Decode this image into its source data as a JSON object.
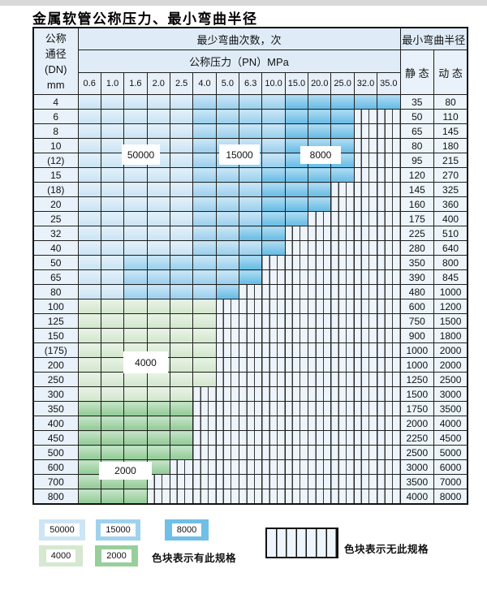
{
  "title": "金属软管公称压力、最小弯曲半径",
  "table": {
    "dn_header_lines": [
      "公称",
      "通径",
      "(DN)",
      "mm"
    ],
    "bend_times_header": "最少弯曲次数，次",
    "pressure_header": "公称压力（PN）MPa",
    "pressure_values": [
      "0.6",
      "1.0",
      "1.6",
      "2.0",
      "2.5",
      "4.0",
      "5.0",
      "6.3",
      "10.0",
      "15.0",
      "20.0",
      "25.0",
      "32.0",
      "35.0"
    ],
    "radius_header": "最小弯曲半径",
    "static_header": "静 态",
    "dynamic_header": "动 态",
    "category_map": {
      "A": "50000",
      "B": "15000",
      "C": "8000",
      "D": "4000",
      "E": "2000",
      "X": "no-spec"
    },
    "rows": [
      {
        "dn": "4",
        "cats": "AAAAABBBBCCCCC",
        "static": "35",
        "dynamic": "80"
      },
      {
        "dn": "6",
        "cats": "AAAAABBBBCCCXX",
        "static": "50",
        "dynamic": "110"
      },
      {
        "dn": "8",
        "cats": "AAAAABBBBCCCXX",
        "static": "65",
        "dynamic": "145"
      },
      {
        "dn": "10",
        "cats": "AAAAABBBBCCCXX",
        "static": "80",
        "dynamic": "180"
      },
      {
        "dn": "(12)",
        "cats": "AAAAABBBBCCCXX",
        "static": "95",
        "dynamic": "215"
      },
      {
        "dn": "15",
        "cats": "AAAAABBBCCCCXX",
        "static": "120",
        "dynamic": "270"
      },
      {
        "dn": "(18)",
        "cats": "AAAAABBBCCCXXX",
        "static": "145",
        "dynamic": "325"
      },
      {
        "dn": "20",
        "cats": "AAAAABBBCCCXXX",
        "static": "160",
        "dynamic": "360"
      },
      {
        "dn": "25",
        "cats": "AAAAABBBCCXXXX",
        "static": "175",
        "dynamic": "400"
      },
      {
        "dn": "32",
        "cats": "AAAAABBCCXXXXX",
        "static": "225",
        "dynamic": "510"
      },
      {
        "dn": "40",
        "cats": "AAAAABBBCXXXXX",
        "static": "280",
        "dynamic": "640"
      },
      {
        "dn": "50",
        "cats": "AABBBBBCXXXXXX",
        "static": "350",
        "dynamic": "800"
      },
      {
        "dn": "65",
        "cats": "AABBBBBCXXXXXX",
        "static": "390",
        "dynamic": "845"
      },
      {
        "dn": "80",
        "cats": "AABBBBCXXXXXXX",
        "static": "480",
        "dynamic": "1000"
      },
      {
        "dn": "100",
        "cats": "DDDDDDXXXXXXXX",
        "static": "600",
        "dynamic": "1200"
      },
      {
        "dn": "125",
        "cats": "DDDDDDXXXXXXXX",
        "static": "750",
        "dynamic": "1500"
      },
      {
        "dn": "150",
        "cats": "DDDDDDXXXXXXXX",
        "static": "900",
        "dynamic": "1800"
      },
      {
        "dn": "(175)",
        "cats": "DDDDDDXXXXXXXX",
        "static": "1000",
        "dynamic": "2000"
      },
      {
        "dn": "200",
        "cats": "DDDDDDXXXXXXXX",
        "static": "1000",
        "dynamic": "2000"
      },
      {
        "dn": "250",
        "cats": "DDDDDDXXXXXXXX",
        "static": "1250",
        "dynamic": "2500"
      },
      {
        "dn": "300",
        "cats": "DDDDDXXXXXXXXX",
        "static": "1500",
        "dynamic": "3000"
      },
      {
        "dn": "350",
        "cats": "EEEEEXXXXXXXXX",
        "static": "1750",
        "dynamic": "3500"
      },
      {
        "dn": "400",
        "cats": "EEEEEXXXXXXXXX",
        "static": "2000",
        "dynamic": "4000"
      },
      {
        "dn": "450",
        "cats": "EEEEEXXXXXXXXX",
        "static": "2250",
        "dynamic": "4500"
      },
      {
        "dn": "500",
        "cats": "EEEEEXXXXXXXXX",
        "static": "2500",
        "dynamic": "5000"
      },
      {
        "dn": "600",
        "cats": "EEEEXXXXXXXXXX",
        "static": "3000",
        "dynamic": "6000"
      },
      {
        "dn": "700",
        "cats": "EEEXXXXXXXXXXX",
        "static": "3500",
        "dynamic": "7000"
      },
      {
        "dn": "800",
        "cats": "EEEXXXXXXXXXXX",
        "static": "4000",
        "dynamic": "8000"
      }
    ]
  },
  "region_labels": [
    {
      "label": "50000"
    },
    {
      "label": "15000"
    },
    {
      "label": "8000"
    },
    {
      "label": "4000"
    },
    {
      "label": "2000"
    }
  ],
  "legend": {
    "swatches": [
      {
        "label": "50000",
        "color": "#cde5f5"
      },
      {
        "label": "15000",
        "color": "#a0d2ee"
      },
      {
        "label": "8000",
        "color": "#6fbfe7"
      },
      {
        "label": "4000",
        "color": "#d5e8d0"
      },
      {
        "label": "2000",
        "color": "#98ce9c"
      }
    ],
    "has_spec_caption": "色块表示有此规格",
    "no_spec_caption": "色块表示无此规格"
  },
  "colors": {
    "bend_50000": "#cde5f5",
    "bend_15000": "#a0d2ee",
    "bend_8000": "#6fbfe7",
    "bend_4000": "#d5e8d0",
    "bend_2000": "#98ce9c",
    "no_spec_background": "#edf4fb",
    "grid_line": "#1f1f1f",
    "header_background": "#dfecf7"
  }
}
